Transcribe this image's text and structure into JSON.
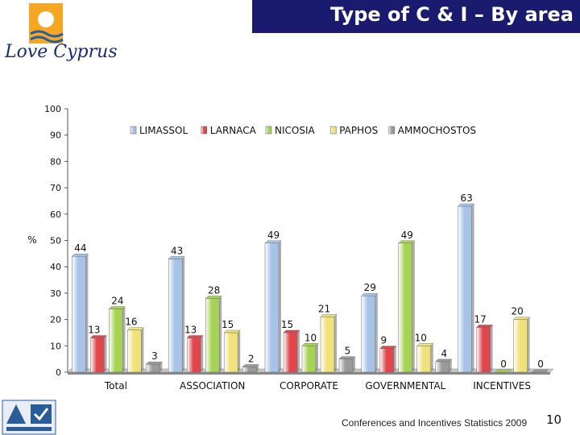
{
  "header": {
    "title": "Type of C & I – By area"
  },
  "brand": {
    "logo_text": "Love Cyprus",
    "sun_color": "#f5a623",
    "wave_color": "#1e5fa8"
  },
  "footer": {
    "text": "Conferences and Incentives Statistics 2009",
    "page_number": "10"
  },
  "chart_data": {
    "type": "bar",
    "ylabel": "%",
    "ylim": [
      0,
      100
    ],
    "yticks": [
      "0",
      "10",
      "20",
      "30",
      "40",
      "50",
      "60",
      "70",
      "80",
      "90",
      "100"
    ],
    "categories": [
      "Total",
      "ASSOCIATION",
      "CORPORATE",
      "GOVERNMENTAL",
      "INCENTIVES"
    ],
    "legend_position": "top",
    "series": [
      {
        "name": "LIMASSOL",
        "color": "#a9c3e8",
        "values": [
          44,
          43,
          49,
          29,
          63
        ]
      },
      {
        "name": "LARNACA",
        "color": "#e0474c",
        "values": [
          13,
          13,
          15,
          9,
          17
        ]
      },
      {
        "name": "NICOSIA",
        "color": "#a6d356",
        "values": [
          24,
          28,
          10,
          49,
          0
        ]
      },
      {
        "name": "PAPHOS",
        "color": "#f0e27a",
        "values": [
          16,
          15,
          21,
          10,
          20
        ]
      },
      {
        "name": "AMMOCHOSTOS",
        "color": "#9a9a9a",
        "values": [
          3,
          2,
          5,
          4,
          0
        ]
      }
    ]
  }
}
